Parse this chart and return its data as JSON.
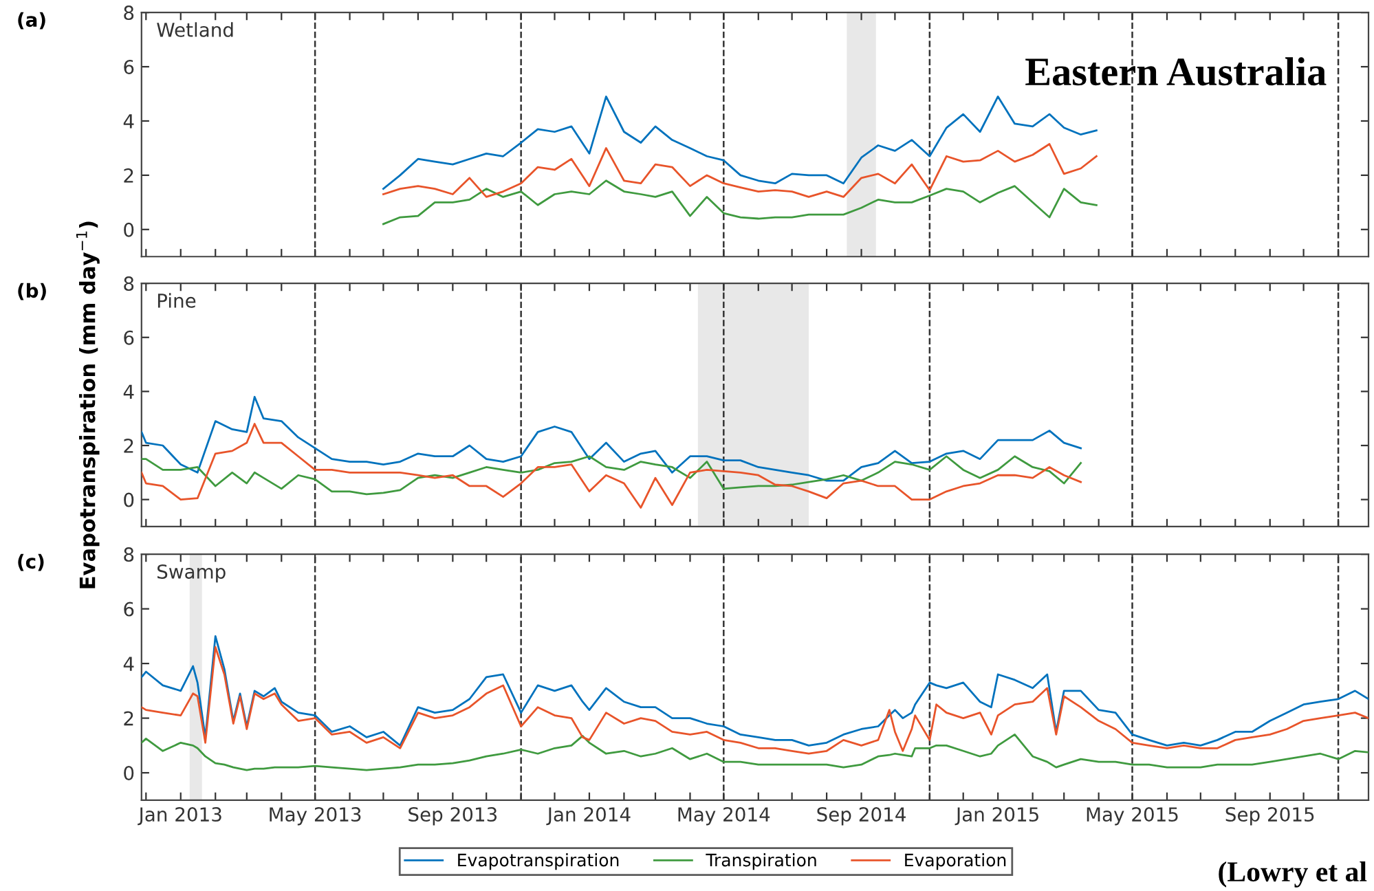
{
  "chart_data": [
    {
      "type": "line",
      "title": "Wetland",
      "annotations": [
        "(a)",
        "Eastern Australia"
      ],
      "xlim": [
        "2012-11-27",
        "2015-11-28"
      ],
      "ylim": [
        -1,
        8
      ],
      "yticks": [
        0,
        2,
        4,
        6,
        8
      ],
      "tick_labels": "y",
      "line_style": "solid",
      "xticks": [
        {
          "value": "2012-12-01",
          "label": null
        },
        {
          "value": "2013-01-01",
          "label": null
        },
        {
          "value": "2013-02-01",
          "label": null
        },
        {
          "value": "2013-03-01",
          "label": null
        },
        {
          "value": "2013-04-01",
          "label": null
        },
        {
          "value": "2013-05-01",
          "label": null
        },
        {
          "value": "2013-06-01",
          "label": null
        },
        {
          "value": "2013-07-01",
          "label": null
        },
        {
          "value": "2013-08-01",
          "label": null
        },
        {
          "value": "2013-09-01",
          "label": null
        },
        {
          "value": "2013-10-01",
          "label": null
        },
        {
          "value": "2013-11-01",
          "label": null
        },
        {
          "value": "2013-12-01",
          "label": null
        },
        {
          "value": "2014-01-01",
          "label": null
        },
        {
          "value": "2014-02-01",
          "label": null
        },
        {
          "value": "2014-03-01",
          "label": null
        },
        {
          "value": "2014-04-01",
          "label": null
        },
        {
          "value": "2014-05-01",
          "label": null
        },
        {
          "value": "2014-06-01",
          "label": null
        },
        {
          "value": "2014-07-01",
          "label": null
        },
        {
          "value": "2014-08-01",
          "label": null
        },
        {
          "value": "2014-09-01",
          "label": null
        },
        {
          "value": "2014-10-01",
          "label": null
        },
        {
          "value": "2014-11-01",
          "label": null
        },
        {
          "value": "2014-12-01",
          "label": null
        },
        {
          "value": "2015-01-01",
          "label": null
        },
        {
          "value": "2015-02-01",
          "label": null
        },
        {
          "value": "2015-03-01",
          "label": null
        },
        {
          "value": "2015-04-01",
          "label": null
        },
        {
          "value": "2015-05-01",
          "label": null
        },
        {
          "value": "2015-06-01",
          "label": null
        },
        {
          "value": "2015-07-01",
          "label": null
        },
        {
          "value": "2015-08-01",
          "label": null
        },
        {
          "value": "2015-09-01",
          "label": null
        },
        {
          "value": "2015-10-01",
          "label": null
        },
        {
          "value": "2015-11-01",
          "label": null
        }
      ],
      "ref_lines": [
        {
          "axis": "x",
          "value": "2013-05-01",
          "color": "#333333",
          "line_style": "dashed"
        },
        {
          "axis": "x",
          "value": "2013-11-01",
          "color": "#333333",
          "line_style": "dashed"
        },
        {
          "axis": "x",
          "value": "2014-05-01",
          "color": "#333333",
          "line_style": "dashed"
        },
        {
          "axis": "x",
          "value": "2014-11-01",
          "color": "#333333",
          "line_style": "dashed"
        },
        {
          "axis": "x",
          "value": "2015-05-01",
          "color": "#333333",
          "line_style": "dashed"
        },
        {
          "axis": "x",
          "value": "2015-11-01",
          "color": "#333333",
          "line_style": "dashed"
        }
      ],
      "bands": [
        {
          "axis": "x",
          "from": "2014-08-19",
          "to": "2014-09-14",
          "color": "#e8e8e8"
        }
      ],
      "x": [
        "2013-07-01",
        "2013-07-16",
        "2013-08-01",
        "2013-08-16",
        "2013-09-01",
        "2013-09-16",
        "2013-10-01",
        "2013-10-16",
        "2013-11-01",
        "2013-11-16",
        "2013-12-01",
        "2013-12-16",
        "2014-01-01",
        "2014-01-16",
        "2014-02-01",
        "2014-02-16",
        "2014-03-01",
        "2014-03-16",
        "2014-04-01",
        "2014-04-16",
        "2014-05-01",
        "2014-05-16",
        "2014-06-01",
        "2014-06-16",
        "2014-07-01",
        "2014-07-16",
        "2014-08-01",
        "2014-08-16",
        "2014-09-01",
        "2014-09-16",
        "2014-10-01",
        "2014-10-16",
        "2014-11-01",
        "2014-11-16",
        "2014-12-01",
        "2014-12-16",
        "2015-01-01",
        "2015-01-16",
        "2015-02-01",
        "2015-02-16",
        "2015-03-01",
        "2015-03-16",
        "2015-03-30"
      ],
      "series": [
        {
          "color": "#0072bd",
          "values": [
            1.5,
            2.0,
            2.6,
            2.5,
            2.4,
            2.6,
            2.8,
            2.7,
            3.2,
            3.7,
            3.6,
            3.8,
            2.8,
            4.9,
            3.6,
            3.2,
            3.8,
            3.3,
            3.0,
            2.7,
            2.55,
            2.0,
            1.8,
            1.7,
            2.05,
            2.0,
            2.0,
            1.7,
            2.65,
            3.1,
            2.9,
            3.3,
            2.7,
            3.75,
            4.25,
            3.6,
            4.9,
            3.9,
            3.8,
            4.25,
            3.75,
            3.5,
            3.65
          ]
        },
        {
          "color": "#3f9a3f",
          "values": [
            0.2,
            0.45,
            0.5,
            1.0,
            1.0,
            1.1,
            1.5,
            1.2,
            1.4,
            0.9,
            1.3,
            1.4,
            1.3,
            1.8,
            1.4,
            1.3,
            1.2,
            1.4,
            0.5,
            1.2,
            0.6,
            0.45,
            0.4,
            0.45,
            0.45,
            0.55,
            0.55,
            0.55,
            0.8,
            1.1,
            1.0,
            1.0,
            1.25,
            1.5,
            1.4,
            1.0,
            1.35,
            1.6,
            1.0,
            0.45,
            1.5,
            1.0,
            0.9
          ]
        },
        {
          "color": "#e8542a",
          "values": [
            1.3,
            1.5,
            1.6,
            1.5,
            1.3,
            1.9,
            1.2,
            1.4,
            1.7,
            2.3,
            2.2,
            2.6,
            1.6,
            3.0,
            1.8,
            1.7,
            2.4,
            2.3,
            1.6,
            2.0,
            1.7,
            1.55,
            1.4,
            1.45,
            1.4,
            1.2,
            1.4,
            1.2,
            1.9,
            2.05,
            1.7,
            2.4,
            1.45,
            2.7,
            2.5,
            2.55,
            2.9,
            2.5,
            2.75,
            3.15,
            2.05,
            2.25,
            2.7
          ]
        }
      ]
    },
    {
      "type": "line",
      "title": "Pine",
      "ylabel": "Evapotranspiration (mm day$^{−1}$)",
      "annotations": [
        "(b)"
      ],
      "xlim": [
        "2012-11-27",
        "2015-11-28"
      ],
      "ylim": [
        -1,
        8
      ],
      "yticks": [
        0,
        2,
        4,
        6,
        8
      ],
      "tick_labels": "y",
      "line_style": "solid",
      "xticks": [
        {
          "value": "2012-12-01",
          "label": null
        },
        {
          "value": "2013-01-01",
          "label": null
        },
        {
          "value": "2013-02-01",
          "label": null
        },
        {
          "value": "2013-03-01",
          "label": null
        },
        {
          "value": "2013-04-01",
          "label": null
        },
        {
          "value": "2013-05-01",
          "label": null
        },
        {
          "value": "2013-06-01",
          "label": null
        },
        {
          "value": "2013-07-01",
          "label": null
        },
        {
          "value": "2013-08-01",
          "label": null
        },
        {
          "value": "2013-09-01",
          "label": null
        },
        {
          "value": "2013-10-01",
          "label": null
        },
        {
          "value": "2013-11-01",
          "label": null
        },
        {
          "value": "2013-12-01",
          "label": null
        },
        {
          "value": "2014-01-01",
          "label": null
        },
        {
          "value": "2014-02-01",
          "label": null
        },
        {
          "value": "2014-03-01",
          "label": null
        },
        {
          "value": "2014-04-01",
          "label": null
        },
        {
          "value": "2014-05-01",
          "label": null
        },
        {
          "value": "2014-06-01",
          "label": null
        },
        {
          "value": "2014-07-01",
          "label": null
        },
        {
          "value": "2014-08-01",
          "label": null
        },
        {
          "value": "2014-09-01",
          "label": null
        },
        {
          "value": "2014-10-01",
          "label": null
        },
        {
          "value": "2014-11-01",
          "label": null
        },
        {
          "value": "2014-12-01",
          "label": null
        },
        {
          "value": "2015-01-01",
          "label": null
        },
        {
          "value": "2015-02-01",
          "label": null
        },
        {
          "value": "2015-03-01",
          "label": null
        },
        {
          "value": "2015-04-01",
          "label": null
        },
        {
          "value": "2015-05-01",
          "label": null
        },
        {
          "value": "2015-06-01",
          "label": null
        },
        {
          "value": "2015-07-01",
          "label": null
        },
        {
          "value": "2015-08-01",
          "label": null
        },
        {
          "value": "2015-09-01",
          "label": null
        },
        {
          "value": "2015-10-01",
          "label": null
        },
        {
          "value": "2015-11-01",
          "label": null
        }
      ],
      "ref_lines": [
        {
          "axis": "x",
          "value": "2013-05-01",
          "color": "#333333",
          "line_style": "dashed"
        },
        {
          "axis": "x",
          "value": "2013-11-01",
          "color": "#333333",
          "line_style": "dashed"
        },
        {
          "axis": "x",
          "value": "2014-05-01",
          "color": "#333333",
          "line_style": "dashed"
        },
        {
          "axis": "x",
          "value": "2014-11-01",
          "color": "#333333",
          "line_style": "dashed"
        },
        {
          "axis": "x",
          "value": "2015-05-01",
          "color": "#333333",
          "line_style": "dashed"
        },
        {
          "axis": "x",
          "value": "2015-11-01",
          "color": "#333333",
          "line_style": "dashed"
        }
      ],
      "bands": [
        {
          "axis": "x",
          "from": "2014-04-08",
          "to": "2014-07-16",
          "color": "#e8e8e8"
        }
      ],
      "x": [
        "2012-11-27",
        "2012-12-01",
        "2012-12-16",
        "2013-01-01",
        "2013-01-16",
        "2013-02-01",
        "2013-02-16",
        "2013-03-01",
        "2013-03-08",
        "2013-03-16",
        "2013-04-01",
        "2013-04-16",
        "2013-05-01",
        "2013-05-16",
        "2013-06-01",
        "2013-06-16",
        "2013-07-01",
        "2013-07-16",
        "2013-08-01",
        "2013-08-16",
        "2013-09-01",
        "2013-09-16",
        "2013-10-01",
        "2013-10-16",
        "2013-11-01",
        "2013-11-16",
        "2013-12-01",
        "2013-12-16",
        "2014-01-01",
        "2014-01-16",
        "2014-02-01",
        "2014-02-16",
        "2014-03-01",
        "2014-03-16",
        "2014-04-01",
        "2014-04-16",
        "2014-05-01",
        "2014-05-16",
        "2014-06-01",
        "2014-06-16",
        "2014-07-01",
        "2014-07-16",
        "2014-08-01",
        "2014-08-16",
        "2014-09-01",
        "2014-09-16",
        "2014-10-01",
        "2014-10-16",
        "2014-11-01",
        "2014-11-16",
        "2014-12-01",
        "2014-12-16",
        "2015-01-01",
        "2015-01-16",
        "2015-02-01",
        "2015-02-16",
        "2015-03-01",
        "2015-03-16"
      ],
      "series": [
        {
          "color": "#0072bd",
          "values": [
            2.5,
            2.1,
            2.0,
            1.3,
            1.0,
            2.9,
            2.6,
            2.5,
            3.8,
            3.0,
            2.9,
            2.3,
            1.9,
            1.5,
            1.4,
            1.4,
            1.3,
            1.4,
            1.7,
            1.6,
            1.6,
            2.0,
            1.5,
            1.4,
            1.6,
            2.5,
            2.7,
            2.5,
            1.5,
            2.1,
            1.4,
            1.7,
            1.8,
            1.0,
            1.6,
            1.6,
            1.45,
            1.45,
            1.2,
            1.1,
            1.0,
            0.9,
            0.7,
            0.7,
            1.2,
            1.35,
            1.8,
            1.35,
            1.4,
            1.7,
            1.8,
            1.5,
            2.2,
            2.2,
            2.2,
            2.55,
            2.1,
            1.9
          ]
        },
        {
          "color": "#3f9a3f",
          "values": [
            1.5,
            1.5,
            1.1,
            1.1,
            1.2,
            0.5,
            1.0,
            0.6,
            1.0,
            0.8,
            0.4,
            0.9,
            0.75,
            0.3,
            0.3,
            0.2,
            0.25,
            0.35,
            0.8,
            0.9,
            0.8,
            1.0,
            1.2,
            1.1,
            1.0,
            1.1,
            1.35,
            1.4,
            1.6,
            1.2,
            1.1,
            1.4,
            1.3,
            1.2,
            0.8,
            1.4,
            0.4,
            0.45,
            0.5,
            0.5,
            0.55,
            0.65,
            0.75,
            0.9,
            0.7,
            1.0,
            1.4,
            1.3,
            1.1,
            1.6,
            1.1,
            0.8,
            1.1,
            1.6,
            1.2,
            1.05,
            0.6,
            1.35
          ]
        },
        {
          "color": "#e8542a",
          "values": [
            1.0,
            0.6,
            0.5,
            0.0,
            0.05,
            1.7,
            1.8,
            2.1,
            2.8,
            2.1,
            2.1,
            1.6,
            1.1,
            1.1,
            1.0,
            1.0,
            1.0,
            1.0,
            0.9,
            0.8,
            0.9,
            0.5,
            0.5,
            0.1,
            0.6,
            1.2,
            1.2,
            1.3,
            0.3,
            0.9,
            0.6,
            -0.3,
            0.8,
            -0.2,
            1.0,
            1.1,
            1.05,
            1.0,
            0.9,
            0.55,
            0.5,
            0.3,
            0.05,
            0.6,
            0.7,
            0.5,
            0.5,
            0.0,
            0.0,
            0.3,
            0.5,
            0.6,
            0.9,
            0.9,
            0.8,
            1.2,
            0.9,
            0.65
          ]
        }
      ]
    },
    {
      "type": "line",
      "title": "Swamp",
      "annotations": [
        "(c)",
        "(Lowry et al"
      ],
      "xlim": [
        "2012-11-27",
        "2015-11-28"
      ],
      "ylim": [
        -1,
        8
      ],
      "yticks": [
        0,
        2,
        4,
        6,
        8
      ],
      "legend": "bottom",
      "line_style": "solid",
      "xticks": [
        {
          "value": "2012-12-01",
          "label": null
        },
        {
          "value": "2013-01-01",
          "label": "Jan 2013"
        },
        {
          "value": "2013-02-01",
          "label": null
        },
        {
          "value": "2013-03-01",
          "label": null
        },
        {
          "value": "2013-04-01",
          "label": null
        },
        {
          "value": "2013-05-01",
          "label": "May 2013"
        },
        {
          "value": "2013-06-01",
          "label": null
        },
        {
          "value": "2013-07-01",
          "label": null
        },
        {
          "value": "2013-08-01",
          "label": null
        },
        {
          "value": "2013-09-01",
          "label": "Sep 2013"
        },
        {
          "value": "2013-10-01",
          "label": null
        },
        {
          "value": "2013-11-01",
          "label": null
        },
        {
          "value": "2013-12-01",
          "label": null
        },
        {
          "value": "2014-01-01",
          "label": "Jan 2014"
        },
        {
          "value": "2014-02-01",
          "label": null
        },
        {
          "value": "2014-03-01",
          "label": null
        },
        {
          "value": "2014-04-01",
          "label": null
        },
        {
          "value": "2014-05-01",
          "label": "May 2014"
        },
        {
          "value": "2014-06-01",
          "label": null
        },
        {
          "value": "2014-07-01",
          "label": null
        },
        {
          "value": "2014-08-01",
          "label": null
        },
        {
          "value": "2014-09-01",
          "label": "Sep 2014"
        },
        {
          "value": "2014-10-01",
          "label": null
        },
        {
          "value": "2014-11-01",
          "label": null
        },
        {
          "value": "2014-12-01",
          "label": null
        },
        {
          "value": "2015-01-01",
          "label": "Jan 2015"
        },
        {
          "value": "2015-02-01",
          "label": null
        },
        {
          "value": "2015-03-01",
          "label": null
        },
        {
          "value": "2015-04-01",
          "label": null
        },
        {
          "value": "2015-05-01",
          "label": "May 2015"
        },
        {
          "value": "2015-06-01",
          "label": null
        },
        {
          "value": "2015-07-01",
          "label": null
        },
        {
          "value": "2015-08-01",
          "label": null
        },
        {
          "value": "2015-09-01",
          "label": "Sep 2015"
        },
        {
          "value": "2015-10-01",
          "label": null
        },
        {
          "value": "2015-11-01",
          "label": null
        }
      ],
      "ref_lines": [
        {
          "axis": "x",
          "value": "2013-05-01",
          "color": "#333333",
          "line_style": "dashed"
        },
        {
          "axis": "x",
          "value": "2013-11-01",
          "color": "#333333",
          "line_style": "dashed"
        },
        {
          "axis": "x",
          "value": "2014-05-01",
          "color": "#333333",
          "line_style": "dashed"
        },
        {
          "axis": "x",
          "value": "2014-11-01",
          "color": "#333333",
          "line_style": "dashed"
        },
        {
          "axis": "x",
          "value": "2015-05-01",
          "color": "#333333",
          "line_style": "dashed"
        },
        {
          "axis": "x",
          "value": "2015-11-01",
          "color": "#333333",
          "line_style": "dashed"
        }
      ],
      "bands": [
        {
          "axis": "x",
          "from": "2013-01-09",
          "to": "2013-01-20",
          "color": "#e8e8e8"
        }
      ],
      "x": [
        "2012-11-27",
        "2012-12-01",
        "2012-12-16",
        "2013-01-01",
        "2013-01-12",
        "2013-01-16",
        "2013-01-23",
        "2013-02-01",
        "2013-02-09",
        "2013-02-17",
        "2013-02-23",
        "2013-03-01",
        "2013-03-08",
        "2013-03-16",
        "2013-03-26",
        "2013-04-01",
        "2013-04-16",
        "2013-05-01",
        "2013-05-16",
        "2013-06-01",
        "2013-06-16",
        "2013-07-01",
        "2013-07-16",
        "2013-08-01",
        "2013-08-16",
        "2013-09-01",
        "2013-09-16",
        "2013-10-01",
        "2013-10-16",
        "2013-11-01",
        "2013-11-16",
        "2013-12-01",
        "2013-12-16",
        "2013-12-26",
        "2014-01-01",
        "2014-01-16",
        "2014-02-01",
        "2014-02-16",
        "2014-03-01",
        "2014-03-16",
        "2014-04-01",
        "2014-04-16",
        "2014-05-01",
        "2014-05-16",
        "2014-06-01",
        "2014-06-16",
        "2014-07-01",
        "2014-07-16",
        "2014-08-01",
        "2014-08-16",
        "2014-09-01",
        "2014-09-16",
        "2014-09-26",
        "2014-10-01",
        "2014-10-08",
        "2014-10-16",
        "2014-10-19",
        "2014-11-01",
        "2014-11-07",
        "2014-11-16",
        "2014-12-01",
        "2014-12-16",
        "2014-12-26",
        "2015-01-01",
        "2015-01-16",
        "2015-02-01",
        "2015-02-14",
        "2015-02-22",
        "2015-03-01",
        "2015-03-16",
        "2015-04-01",
        "2015-04-16",
        "2015-05-01",
        "2015-05-16",
        "2015-06-01",
        "2015-06-16",
        "2015-07-01",
        "2015-07-16",
        "2015-08-01",
        "2015-08-16",
        "2015-09-01",
        "2015-09-16",
        "2015-10-01",
        "2015-10-16",
        "2015-11-01",
        "2015-11-16",
        "2015-11-28"
      ],
      "series": [
        {
          "name": "Evapotranspiration",
          "color": "#0072bd",
          "values": [
            3.5,
            3.7,
            3.2,
            3.0,
            3.9,
            3.3,
            1.3,
            5.0,
            3.8,
            1.9,
            2.9,
            1.7,
            3.0,
            2.8,
            3.1,
            2.6,
            2.2,
            2.1,
            1.5,
            1.7,
            1.3,
            1.5,
            1.0,
            2.4,
            2.2,
            2.3,
            2.7,
            3.5,
            3.6,
            2.2,
            3.2,
            3.0,
            3.2,
            2.6,
            2.3,
            3.1,
            2.6,
            2.4,
            2.4,
            2.0,
            2.0,
            1.8,
            1.7,
            1.4,
            1.3,
            1.2,
            1.2,
            1.0,
            1.1,
            1.4,
            1.6,
            1.7,
            2.1,
            2.3,
            2.0,
            2.2,
            2.5,
            3.3,
            3.2,
            3.1,
            3.3,
            2.6,
            2.4,
            3.6,
            3.4,
            3.1,
            3.6,
            1.5,
            3.0,
            3.0,
            2.3,
            2.2,
            1.4,
            1.2,
            1.0,
            1.1,
            1.0,
            1.2,
            1.5,
            1.5,
            1.9,
            2.2,
            2.5,
            2.6,
            2.7,
            3.0,
            2.7
          ]
        },
        {
          "name": "Transpiration",
          "color": "#3f9a3f",
          "values": [
            1.1,
            1.25,
            0.8,
            1.1,
            1.0,
            0.9,
            0.6,
            0.35,
            0.3,
            0.2,
            0.15,
            0.1,
            0.15,
            0.15,
            0.2,
            0.2,
            0.2,
            0.25,
            0.2,
            0.15,
            0.1,
            0.15,
            0.2,
            0.3,
            0.3,
            0.35,
            0.45,
            0.6,
            0.7,
            0.85,
            0.7,
            0.9,
            1.0,
            1.35,
            1.1,
            0.7,
            0.8,
            0.6,
            0.7,
            0.9,
            0.5,
            0.7,
            0.4,
            0.4,
            0.3,
            0.3,
            0.3,
            0.3,
            0.3,
            0.2,
            0.3,
            0.6,
            0.65,
            0.7,
            0.65,
            0.6,
            0.9,
            0.9,
            1.0,
            1.0,
            0.8,
            0.6,
            0.7,
            1.0,
            1.4,
            0.6,
            0.4,
            0.2,
            0.3,
            0.5,
            0.4,
            0.4,
            0.3,
            0.3,
            0.2,
            0.2,
            0.2,
            0.3,
            0.3,
            0.3,
            0.4,
            0.5,
            0.6,
            0.7,
            0.5,
            0.8,
            0.75
          ]
        },
        {
          "name": "Evaporation",
          "color": "#e8542a",
          "values": [
            2.4,
            2.3,
            2.2,
            2.1,
            2.9,
            2.8,
            1.1,
            4.6,
            3.6,
            1.8,
            2.8,
            1.6,
            2.9,
            2.7,
            2.9,
            2.5,
            1.9,
            2.0,
            1.4,
            1.5,
            1.1,
            1.3,
            0.9,
            2.2,
            2.0,
            2.1,
            2.4,
            2.9,
            3.2,
            1.7,
            2.4,
            2.1,
            2.0,
            1.3,
            1.2,
            2.2,
            1.8,
            2.0,
            1.9,
            1.5,
            1.4,
            1.5,
            1.2,
            1.1,
            0.9,
            0.9,
            0.8,
            0.7,
            0.8,
            1.2,
            1.0,
            1.2,
            2.3,
            1.5,
            0.8,
            1.6,
            2.1,
            1.2,
            2.5,
            2.2,
            2.0,
            2.2,
            1.4,
            2.1,
            2.5,
            2.6,
            3.1,
            1.4,
            2.8,
            2.4,
            1.9,
            1.6,
            1.1,
            1.0,
            0.9,
            1.0,
            0.9,
            0.9,
            1.2,
            1.3,
            1.4,
            1.6,
            1.9,
            2.0,
            2.1,
            2.2,
            2.0
          ]
        }
      ]
    }
  ]
}
